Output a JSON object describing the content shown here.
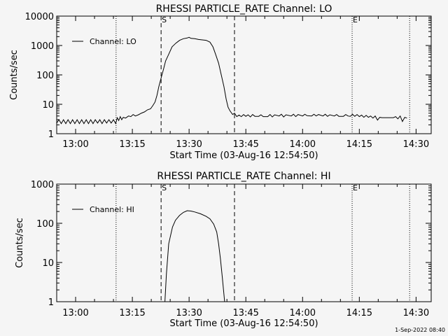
{
  "chart_data": [
    {
      "type": "line",
      "title": "RHESSI PARTICLE_RATE Channel: LO",
      "xlabel": "Start Time (03-Aug-16 12:54:50)",
      "ylabel": "Counts/sec",
      "yscale": "log",
      "ylim": [
        1,
        10000
      ],
      "xlim_minutes_from_1300": [
        -5,
        94
      ],
      "x_tick_labels": [
        "13:00",
        "13:15",
        "13:30",
        "13:45",
        "14:00",
        "14:15",
        "14:30"
      ],
      "y_tick_labels": [
        "1",
        "10",
        "100",
        "1000",
        "10000"
      ],
      "legend": {
        "label": "Channel: LO",
        "placement": "top-left"
      },
      "markers": [
        {
          "t": 10.7,
          "style": "dotted",
          "label": ""
        },
        {
          "t": 22.6,
          "style": "dashed",
          "label": "S"
        },
        {
          "t": 42.0,
          "style": "dashed",
          "label": ""
        },
        {
          "t": 73.1,
          "style": "dotted",
          "label": "E"
        },
        {
          "t": 88.3,
          "style": "dotted",
          "label": ""
        }
      ],
      "series": [
        {
          "name": "Channel: LO",
          "t": [
            -5,
            -4.4,
            -3.8,
            -3.2,
            -2.6,
            -2,
            -1.4,
            -0.8,
            -0.2,
            0.4,
            1,
            1.6,
            2.2,
            2.8,
            3.4,
            4,
            4.6,
            5.2,
            5.8,
            6.4,
            7,
            7.6,
            8.2,
            8.8,
            9.4,
            10,
            10.6,
            11,
            11.4,
            11.8,
            12.2,
            12.6,
            13.2,
            14,
            14.6,
            15.2,
            15.8,
            16.6,
            17.4,
            18.2,
            19,
            19.8,
            20.4,
            21,
            21.5,
            22,
            22.5,
            23.2,
            23.8,
            24.6,
            25.5,
            26.5,
            27.5,
            28.5,
            29.5,
            30,
            30.5,
            31.5,
            32.5,
            33.5,
            34.5,
            35.5,
            36.3,
            37,
            37.8,
            38.5,
            39.2,
            39.8,
            40.3,
            40.8,
            41.5,
            42,
            42.6,
            43.2,
            43.8,
            44.4,
            45,
            45.6,
            46.2,
            46.8,
            47.4,
            48.4,
            49,
            49.6,
            50.8,
            51.4,
            52,
            52.6,
            53.8,
            54.4,
            55,
            55.6,
            57,
            57.6,
            58.2,
            58.8,
            60,
            60.6,
            61.2,
            62.4,
            63,
            63.6,
            64.2,
            65.4,
            66,
            66.6,
            67.2,
            68.4,
            69,
            69.6,
            70.8,
            71.4,
            72,
            72.6,
            73.2,
            73.8,
            74.4,
            75,
            75.6,
            76.2,
            76.8,
            77.4,
            78,
            78.6,
            79.2,
            79.8,
            80.4,
            81,
            84,
            84.6,
            85.2,
            85.8,
            86.4,
            87,
            87.6
          ],
          "values": [
            2.3,
            3,
            2.2,
            3,
            2.2,
            3,
            2.2,
            3,
            2.2,
            3,
            2.2,
            3,
            2.2,
            3,
            2.2,
            3,
            2.2,
            3,
            2.3,
            3,
            2.2,
            3,
            2.3,
            3,
            2.3,
            3,
            2.2,
            3.5,
            2.8,
            3.8,
            3,
            3.6,
            3.4,
            4,
            3.8,
            4.5,
            4,
            4.4,
            5,
            5.5,
            6.5,
            7,
            9,
            12,
            20,
            40,
            70,
            150,
            300,
            500,
            900,
            1200,
            1500,
            1700,
            1800,
            1900,
            1750,
            1700,
            1600,
            1550,
            1500,
            1300,
            900,
            500,
            250,
            100,
            40,
            15,
            8,
            6,
            4.5,
            5,
            3.8,
            4.3,
            3.8,
            4.5,
            3.9,
            4.4,
            3.7,
            4.5,
            3.9,
            3.9,
            4.4,
            3.8,
            3.8,
            4.5,
            3.7,
            4.4,
            4,
            4.6,
            3.7,
            4.4,
            4,
            4.6,
            3.8,
            4.5,
            4,
            4.6,
            4.1,
            4,
            4.6,
            4,
            4.5,
            4,
            4.6,
            3.9,
            4.4,
            4,
            4.5,
            3.9,
            3.9,
            4.5,
            4,
            3.9,
            4.6,
            3.9,
            4.5,
            3.8,
            4.3,
            3.6,
            4.2,
            3.6,
            4,
            3.4,
            4,
            2.9,
            3.6,
            3.5,
            3.5,
            3.8,
            3.2,
            4,
            2.6,
            3.6,
            3.4
          ]
        }
      ]
    },
    {
      "type": "line",
      "title": "RHESSI PARTICLE_RATE Channel: HI",
      "xlabel": "Start Time (03-Aug-16 12:54:50)",
      "ylabel": "Counts/sec",
      "yscale": "log",
      "ylim": [
        1,
        1000
      ],
      "xlim_minutes_from_1300": [
        -5,
        94
      ],
      "x_tick_labels": [
        "13:00",
        "13:15",
        "13:30",
        "13:45",
        "14:00",
        "14:15",
        "14:30"
      ],
      "y_tick_labels": [
        "1",
        "10",
        "100",
        "1000"
      ],
      "legend": {
        "label": "Channel: HI",
        "placement": "top-left"
      },
      "markers": [
        {
          "t": 10.7,
          "style": "dotted",
          "label": ""
        },
        {
          "t": 22.6,
          "style": "dashed",
          "label": "S"
        },
        {
          "t": 42.0,
          "style": "dashed",
          "label": ""
        },
        {
          "t": 73.1,
          "style": "dotted",
          "label": "E"
        },
        {
          "t": 88.3,
          "style": "dotted",
          "label": ""
        }
      ],
      "series": [
        {
          "name": "Channel: HI",
          "t": [
            23.6,
            24,
            24.6,
            25.6,
            26.4,
            27.5,
            28.5,
            29.5,
            30.5,
            31.5,
            33,
            34.5,
            35.5,
            36.5,
            37.3,
            37.8,
            38.3,
            38.8,
            39.4
          ],
          "values": [
            1,
            5,
            30,
            80,
            120,
            160,
            190,
            210,
            205,
            195,
            175,
            150,
            130,
            95,
            60,
            30,
            12,
            4,
            1
          ]
        }
      ]
    }
  ],
  "footer": {
    "timestamp": "1-Sep-2022 08:40"
  }
}
